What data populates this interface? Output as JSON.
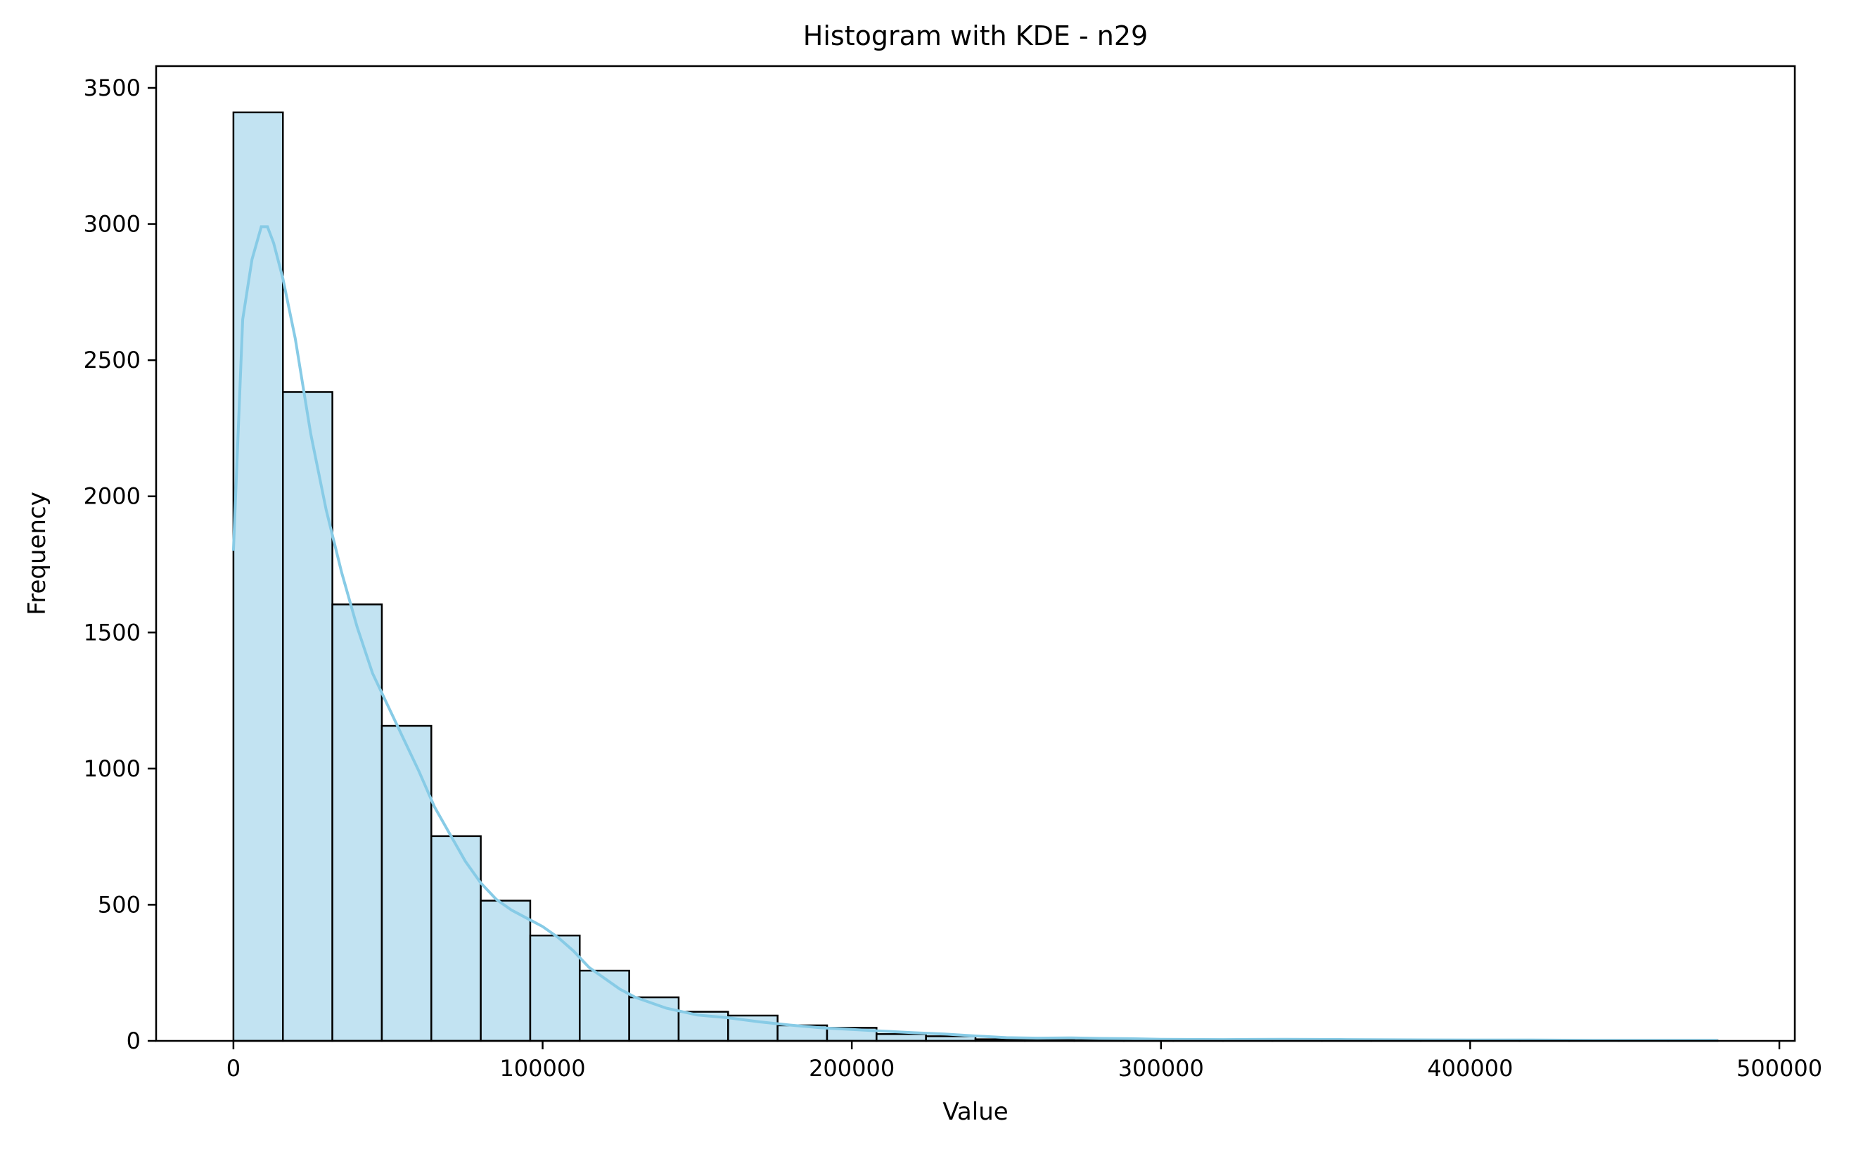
{
  "chart_data": {
    "type": "bar",
    "title": "Histogram with KDE - n29",
    "xlabel": "Value",
    "ylabel": "Frequency",
    "xlim": [
      -25000,
      505000
    ],
    "ylim": [
      0,
      3580
    ],
    "xticks": [
      0,
      100000,
      200000,
      300000,
      400000,
      500000
    ],
    "yticks": [
      0,
      500,
      1000,
      1500,
      2000,
      2500,
      3000,
      3500
    ],
    "bin_width": 16000,
    "bin_edges_start": 0,
    "values": [
      3410,
      2383,
      1603,
      1157,
      752,
      515,
      387,
      258,
      160,
      107,
      93,
      57,
      48,
      25,
      17,
      6,
      3,
      2,
      3,
      2,
      2,
      1,
      1,
      1,
      1,
      1,
      1,
      1,
      1,
      1
    ],
    "kde": {
      "x": [
        0,
        3000,
        6000,
        9000,
        11000,
        13000,
        16000,
        20000,
        25000,
        30000,
        35000,
        40000,
        45000,
        50000,
        55000,
        60000,
        65000,
        70000,
        75000,
        80000,
        85000,
        90000,
        95000,
        100000,
        105000,
        110000,
        115000,
        120000,
        125000,
        130000,
        140000,
        150000,
        160000,
        170000,
        180000,
        190000,
        200000,
        210000,
        220000,
        230000,
        240000,
        250000,
        260000,
        270000,
        280000,
        290000,
        300000,
        320000,
        340000,
        360000,
        380000,
        400000,
        420000,
        440000,
        460000,
        480000
      ],
      "y": [
        1800,
        2650,
        2870,
        2990,
        2990,
        2930,
        2800,
        2580,
        2230,
        1950,
        1720,
        1520,
        1350,
        1230,
        1110,
        990,
        860,
        760,
        660,
        580,
        520,
        480,
        450,
        420,
        380,
        330,
        270,
        230,
        190,
        160,
        120,
        95,
        85,
        70,
        58,
        48,
        42,
        36,
        30,
        25,
        18,
        12,
        10,
        11,
        9,
        8,
        6,
        5,
        6,
        5,
        4,
        3,
        3,
        2,
        2,
        2
      ]
    },
    "bar_fill": "#c2e3f2",
    "bar_edge": "#000000",
    "kde_color": "#87cbe6",
    "grid": false,
    "legend": "none"
  }
}
